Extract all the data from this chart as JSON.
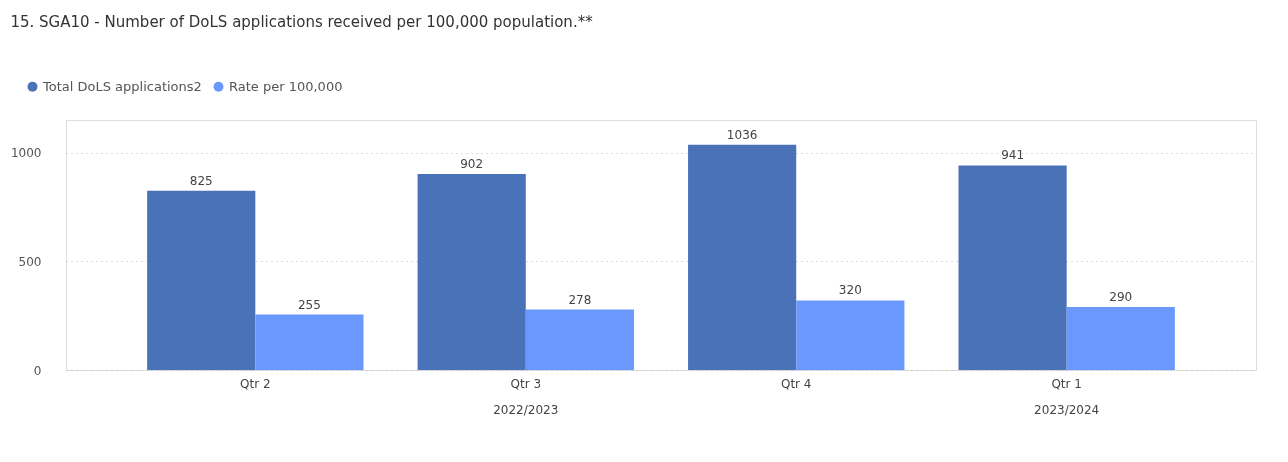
{
  "chart_data": {
    "type": "bar",
    "title": "15. SGA10 - Number of DoLS applications received per 100,000 population.**",
    "categories": [
      "Qtr 2",
      "Qtr 3",
      "Qtr 4",
      "Qtr 1"
    ],
    "series": [
      {
        "name": "Total DoLS applications2",
        "color": "#4a72b8",
        "values": [
          825,
          902,
          1036,
          941
        ]
      },
      {
        "name": "Rate per 100,000",
        "color": "#6b98fd",
        "values": [
          255,
          278,
          320,
          290
        ]
      }
    ],
    "annotations": [
      "2022/2023",
      "2023/2024"
    ],
    "ylim": [
      0,
      1150
    ],
    "yticks": [
      0,
      500,
      1000
    ],
    "grid": "y",
    "legend": "top left",
    "data_labels": true
  }
}
